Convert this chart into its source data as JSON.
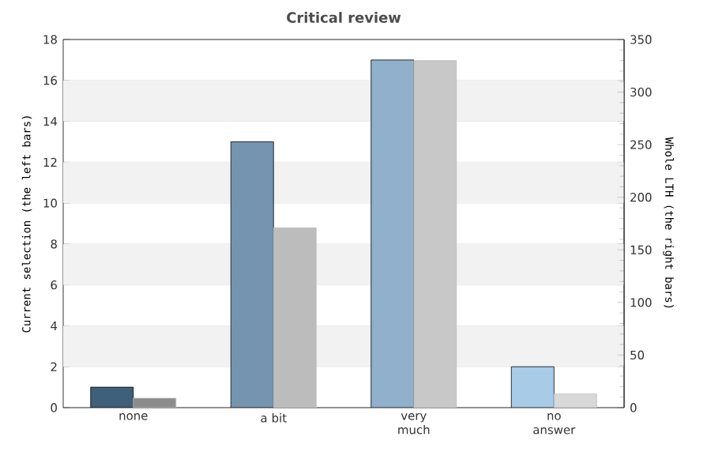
{
  "chart_data": {
    "type": "bar",
    "title": "Critical review",
    "ylabel": "Current selection (the left bars)",
    "y2label": "Whole LTH (the right bars)",
    "categories": [
      "none",
      "a bit",
      "very much",
      "no answer"
    ],
    "series": [
      {
        "colors": [
          "#3f5f7a",
          "#7494b0",
          "#90b0cb",
          "#a8cce8"
        ],
        "values": [
          1,
          13,
          17,
          2
        ]
      },
      {
        "colors": [
          "#8c8c8c",
          "#bcbcbc",
          "#c8c8c8",
          "#d8d8d8"
        ],
        "values": [
          9,
          171,
          330,
          13
        ],
        "axis": "y2"
      }
    ],
    "ylim": [
      0,
      18
    ],
    "yticks": [
      0,
      2,
      4,
      6,
      8,
      10,
      12,
      14,
      16,
      18
    ],
    "y2lim": [
      0,
      350
    ],
    "y2ticks": [
      0,
      50,
      100,
      150,
      200,
      250,
      300,
      350
    ],
    "grid": "y"
  }
}
